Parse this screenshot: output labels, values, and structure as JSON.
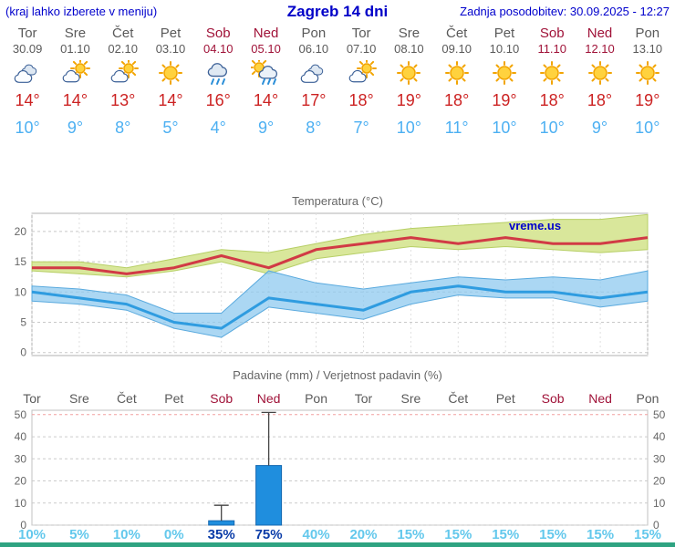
{
  "header": {
    "hint": "(kraj lahko izberete v meniju)",
    "title": "Zagreb 14 dni",
    "updated": "Zadnja posodobitev: 30.09.2025 - 12:27"
  },
  "watermark": "vreme.us",
  "colors": {
    "header_blue": "#0000cc",
    "weekday_text": "#5a5a5a",
    "weekend_text": "#a01238",
    "tmax_red": "#cc2222",
    "tmin_blue": "#4db0f2",
    "pop_cyan": "#63c8ec",
    "pop_strong_blue": "#0a3ca8",
    "bar_blue": "#1f8ede",
    "max_band_green": "#d9e79b",
    "min_band_blue": "#8fc9ef",
    "footer_teal": "#2ea381"
  },
  "days": [
    {
      "name": "Tor",
      "date": "30.09",
      "weekend": false,
      "icon": "cloudy",
      "tmax": "14°",
      "tmin": "10°",
      "pop": "10%",
      "pop_strong": false
    },
    {
      "name": "Sre",
      "date": "01.10",
      "weekend": false,
      "icon": "partly-cloudy",
      "tmax": "14°",
      "tmin": "9°",
      "pop": "5%",
      "pop_strong": false
    },
    {
      "name": "Čet",
      "date": "02.10",
      "weekend": false,
      "icon": "partly-cloudy",
      "tmax": "13°",
      "tmin": "8°",
      "pop": "10%",
      "pop_strong": false
    },
    {
      "name": "Pet",
      "date": "03.10",
      "weekend": false,
      "icon": "sunny",
      "tmax": "14°",
      "tmin": "5°",
      "pop": "0%",
      "pop_strong": false
    },
    {
      "name": "Sob",
      "date": "04.10",
      "weekend": true,
      "icon": "rain",
      "tmax": "16°",
      "tmin": "4°",
      "pop": "35%",
      "pop_strong": true
    },
    {
      "name": "Ned",
      "date": "05.10",
      "weekend": true,
      "icon": "sun-rain",
      "tmax": "14°",
      "tmin": "9°",
      "pop": "75%",
      "pop_strong": true
    },
    {
      "name": "Pon",
      "date": "06.10",
      "weekend": false,
      "icon": "cloudy",
      "tmax": "17°",
      "tmin": "8°",
      "pop": "40%",
      "pop_strong": false
    },
    {
      "name": "Tor",
      "date": "07.10",
      "weekend": false,
      "icon": "partly-cloudy",
      "tmax": "18°",
      "tmin": "7°",
      "pop": "20%",
      "pop_strong": false
    },
    {
      "name": "Sre",
      "date": "08.10",
      "weekend": false,
      "icon": "sunny",
      "tmax": "19°",
      "tmin": "10°",
      "pop": "15%",
      "pop_strong": false
    },
    {
      "name": "Čet",
      "date": "09.10",
      "weekend": false,
      "icon": "sunny",
      "tmax": "18°",
      "tmin": "11°",
      "pop": "15%",
      "pop_strong": false
    },
    {
      "name": "Pet",
      "date": "10.10",
      "weekend": false,
      "icon": "sunny",
      "tmax": "19°",
      "tmin": "10°",
      "pop": "15%",
      "pop_strong": false
    },
    {
      "name": "Sob",
      "date": "11.10",
      "weekend": true,
      "icon": "sunny",
      "tmax": "18°",
      "tmin": "10°",
      "pop": "15%",
      "pop_strong": false
    },
    {
      "name": "Ned",
      "date": "12.10",
      "weekend": true,
      "icon": "sunny",
      "tmax": "18°",
      "tmin": "9°",
      "pop": "15%",
      "pop_strong": false
    },
    {
      "name": "Pon",
      "date": "13.10",
      "weekend": false,
      "icon": "sunny",
      "tmax": "19°",
      "tmin": "10°",
      "pop": "15%",
      "pop_strong": false
    }
  ],
  "chart_data": [
    {
      "type": "line",
      "title": "Temperatura (°C)",
      "x": [
        "30.09",
        "01.10",
        "02.10",
        "03.10",
        "04.10",
        "05.10",
        "06.10",
        "07.10",
        "08.10",
        "09.10",
        "10.10",
        "11.10",
        "12.10",
        "13.10"
      ],
      "ylim": [
        -0.5,
        23
      ],
      "yticks": [
        0,
        5,
        10,
        15,
        20
      ],
      "grid": true,
      "legend": "none",
      "watermark": "vreme.us",
      "series": [
        {
          "name": "max temperature",
          "color": "#d13a45",
          "values": [
            14,
            14,
            13,
            14,
            16,
            14,
            17,
            18,
            19,
            18,
            19,
            18,
            18,
            19
          ]
        },
        {
          "name": "min temperature",
          "color": "#2f9ce0",
          "values": [
            10,
            9,
            8,
            5,
            4,
            9,
            8,
            7,
            10,
            11,
            10,
            10,
            9,
            10
          ]
        },
        {
          "name": "max band upper",
          "color": "#d9e79b",
          "values": [
            15,
            15,
            14,
            15.5,
            17,
            16.5,
            18,
            19.5,
            20.5,
            21,
            21.5,
            22,
            22,
            22.8
          ]
        },
        {
          "name": "max band lower",
          "color": "#d9e79b",
          "values": [
            13.5,
            13,
            12.5,
            13.5,
            15,
            13,
            15.5,
            16.5,
            17.5,
            17,
            17.5,
            17,
            16.5,
            17
          ]
        },
        {
          "name": "min band upper",
          "color": "#8fc9ef",
          "values": [
            11,
            10.5,
            9.5,
            6.5,
            6.5,
            13.5,
            11.5,
            10.5,
            11.5,
            12.5,
            12,
            12.5,
            12,
            13.5
          ]
        },
        {
          "name": "min band lower",
          "color": "#8fc9ef",
          "values": [
            8.5,
            8,
            7,
            4,
            2.5,
            7.5,
            6.5,
            5.5,
            8,
            9.5,
            9,
            9,
            7.5,
            8.5
          ]
        }
      ]
    },
    {
      "type": "bar",
      "title": "Padavine (mm) / Verjetnost padavin (%)",
      "categories": [
        "Tor",
        "Sre",
        "Čet",
        "Pet",
        "Sob",
        "Ned",
        "Pon",
        "Tor",
        "Sre",
        "Čet",
        "Pet",
        "Sob",
        "Ned",
        "Pon"
      ],
      "weekend": [
        false,
        false,
        false,
        false,
        true,
        true,
        false,
        false,
        false,
        false,
        false,
        true,
        true,
        false
      ],
      "values": [
        0,
        0,
        0,
        0,
        2,
        27,
        0,
        0,
        0,
        0,
        0,
        0,
        0,
        0
      ],
      "whisker_top": [
        0,
        0,
        0,
        0,
        9,
        51,
        0,
        0,
        0,
        0,
        0,
        0,
        0,
        0
      ],
      "probabilities": [
        "10%",
        "5%",
        "10%",
        "0%",
        "35%",
        "75%",
        "40%",
        "20%",
        "15%",
        "15%",
        "15%",
        "15%",
        "15%",
        "15%"
      ],
      "prob_strong": [
        false,
        false,
        false,
        false,
        true,
        true,
        false,
        false,
        false,
        false,
        false,
        false,
        false,
        false
      ],
      "ylim": [
        0,
        52
      ],
      "yticks": [
        0,
        10,
        20,
        30,
        40,
        50
      ],
      "bar_color": "#1f8ede"
    }
  ]
}
